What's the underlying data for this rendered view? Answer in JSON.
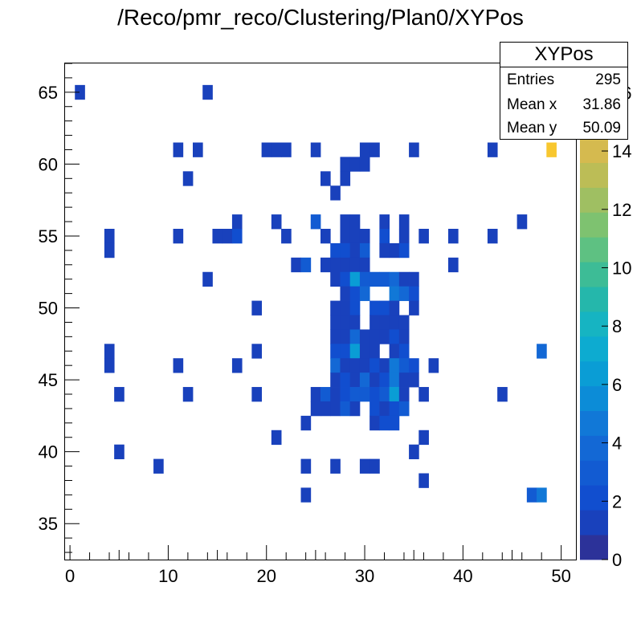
{
  "chart_data": {
    "type": "heatmap",
    "title": "/Reco/pmr_reco/Clustering/Plan0/XYPos",
    "xlabel": "",
    "ylabel": "",
    "xlim": [
      -0.5,
      51.5
    ],
    "ylim": [
      32.5,
      67
    ],
    "bin_width": 1,
    "x_ticks": [
      0,
      10,
      20,
      30,
      40,
      50
    ],
    "y_ticks": [
      35,
      40,
      45,
      50,
      55,
      60,
      65
    ],
    "colorbar": {
      "min": 0,
      "max": 17,
      "ticks": [
        0,
        2,
        4,
        6,
        8,
        10,
        12,
        14,
        16
      ],
      "tick_labels": [
        "0",
        "2",
        "4",
        "6",
        "8",
        "10",
        "12",
        "14",
        "16"
      ]
    },
    "stats": {
      "name": "XYPos",
      "entries_label": "Entries",
      "entries": "295",
      "meanx_label": "Mean x",
      "meanx": "31.86",
      "meany_label": "Mean y",
      "meany": "50.09"
    },
    "bins": [
      [
        1,
        65,
        1
      ],
      [
        14,
        65,
        1
      ],
      [
        11,
        61,
        1
      ],
      [
        13,
        61,
        1
      ],
      [
        20,
        61,
        1
      ],
      [
        21,
        61,
        1
      ],
      [
        22,
        61,
        1
      ],
      [
        25,
        61,
        1
      ],
      [
        30,
        61,
        1
      ],
      [
        31,
        61,
        1
      ],
      [
        35,
        61,
        1
      ],
      [
        43,
        61,
        1
      ],
      [
        49,
        61,
        16
      ],
      [
        28,
        60,
        1
      ],
      [
        29,
        60,
        1
      ],
      [
        30,
        60,
        1
      ],
      [
        12,
        59,
        1
      ],
      [
        26,
        59,
        1
      ],
      [
        28,
        59,
        1
      ],
      [
        27,
        58,
        1
      ],
      [
        17,
        56,
        1
      ],
      [
        21,
        56,
        1
      ],
      [
        25,
        56,
        3
      ],
      [
        28,
        56,
        1
      ],
      [
        29,
        56,
        1
      ],
      [
        32,
        56,
        1
      ],
      [
        34,
        56,
        1
      ],
      [
        46,
        56,
        1
      ],
      [
        4,
        55,
        1
      ],
      [
        11,
        55,
        1
      ],
      [
        15,
        55,
        1
      ],
      [
        16,
        55,
        1
      ],
      [
        17,
        55,
        2
      ],
      [
        22,
        55,
        1
      ],
      [
        26,
        55,
        1
      ],
      [
        28,
        55,
        1
      ],
      [
        29,
        55,
        1
      ],
      [
        30,
        55,
        1
      ],
      [
        32,
        55,
        2
      ],
      [
        34,
        55,
        1
      ],
      [
        36,
        55,
        1
      ],
      [
        39,
        55,
        1
      ],
      [
        43,
        55,
        1
      ],
      [
        4,
        54,
        1
      ],
      [
        27,
        54,
        2
      ],
      [
        28,
        54,
        2
      ],
      [
        29,
        54,
        1
      ],
      [
        30,
        54,
        3
      ],
      [
        32,
        54,
        1
      ],
      [
        33,
        54,
        1
      ],
      [
        34,
        54,
        2
      ],
      [
        23,
        53,
        1
      ],
      [
        24,
        53,
        3
      ],
      [
        26,
        53,
        1
      ],
      [
        27,
        53,
        1
      ],
      [
        28,
        53,
        1
      ],
      [
        29,
        53,
        1
      ],
      [
        30,
        53,
        1
      ],
      [
        39,
        53,
        1
      ],
      [
        14,
        52,
        1
      ],
      [
        27,
        52,
        1
      ],
      [
        28,
        52,
        2
      ],
      [
        29,
        52,
        6
      ],
      [
        30,
        52,
        3
      ],
      [
        31,
        52,
        3
      ],
      [
        32,
        52,
        3
      ],
      [
        33,
        52,
        4
      ],
      [
        34,
        52,
        1
      ],
      [
        35,
        52,
        1
      ],
      [
        28,
        51,
        1
      ],
      [
        29,
        51,
        2
      ],
      [
        30,
        51,
        4
      ],
      [
        33,
        51,
        5
      ],
      [
        34,
        51,
        4
      ],
      [
        35,
        51,
        2
      ],
      [
        19,
        50,
        1
      ],
      [
        27,
        50,
        1
      ],
      [
        28,
        50,
        1
      ],
      [
        29,
        50,
        2
      ],
      [
        31,
        50,
        2
      ],
      [
        32,
        50,
        2
      ],
      [
        33,
        50,
        1
      ],
      [
        35,
        50,
        1
      ],
      [
        27,
        49,
        1
      ],
      [
        28,
        49,
        1
      ],
      [
        29,
        49,
        1
      ],
      [
        31,
        49,
        1
      ],
      [
        32,
        49,
        1
      ],
      [
        33,
        49,
        1
      ],
      [
        34,
        49,
        1
      ],
      [
        27,
        48,
        1
      ],
      [
        28,
        48,
        1
      ],
      [
        29,
        48,
        4
      ],
      [
        30,
        48,
        1
      ],
      [
        31,
        48,
        1
      ],
      [
        32,
        48,
        1
      ],
      [
        33,
        48,
        2
      ],
      [
        34,
        48,
        1
      ],
      [
        4,
        47,
        1
      ],
      [
        19,
        47,
        1
      ],
      [
        27,
        47,
        2
      ],
      [
        28,
        47,
        2
      ],
      [
        29,
        47,
        6
      ],
      [
        30,
        47,
        1
      ],
      [
        31,
        47,
        1
      ],
      [
        33,
        47,
        1
      ],
      [
        34,
        47,
        2
      ],
      [
        48,
        47,
        4
      ],
      [
        4,
        46,
        1
      ],
      [
        11,
        46,
        1
      ],
      [
        17,
        46,
        1
      ],
      [
        27,
        46,
        4
      ],
      [
        28,
        46,
        1
      ],
      [
        29,
        46,
        1
      ],
      [
        30,
        46,
        1
      ],
      [
        31,
        46,
        2
      ],
      [
        32,
        46,
        1
      ],
      [
        33,
        46,
        5
      ],
      [
        34,
        46,
        3
      ],
      [
        35,
        46,
        2
      ],
      [
        37,
        46,
        1
      ],
      [
        27,
        45,
        1
      ],
      [
        28,
        45,
        2
      ],
      [
        29,
        45,
        1
      ],
      [
        30,
        45,
        4
      ],
      [
        31,
        45,
        1
      ],
      [
        32,
        45,
        2
      ],
      [
        33,
        45,
        5
      ],
      [
        34,
        45,
        1
      ],
      [
        35,
        45,
        1
      ],
      [
        5,
        44,
        1
      ],
      [
        12,
        44,
        1
      ],
      [
        19,
        44,
        1
      ],
      [
        25,
        44,
        1
      ],
      [
        26,
        44,
        3
      ],
      [
        27,
        44,
        1
      ],
      [
        28,
        44,
        2
      ],
      [
        29,
        44,
        3
      ],
      [
        30,
        44,
        3
      ],
      [
        31,
        44,
        2
      ],
      [
        32,
        44,
        3
      ],
      [
        33,
        44,
        6
      ],
      [
        34,
        44,
        1
      ],
      [
        36,
        44,
        1
      ],
      [
        44,
        44,
        1
      ],
      [
        25,
        43,
        1
      ],
      [
        26,
        43,
        1
      ],
      [
        27,
        43,
        1
      ],
      [
        28,
        43,
        3
      ],
      [
        29,
        43,
        1
      ],
      [
        31,
        43,
        2
      ],
      [
        32,
        43,
        1
      ],
      [
        33,
        43,
        2
      ],
      [
        34,
        43,
        3
      ],
      [
        24,
        42,
        1
      ],
      [
        31,
        42,
        1
      ],
      [
        32,
        42,
        2
      ],
      [
        33,
        42,
        2
      ],
      [
        21,
        41,
        1
      ],
      [
        36,
        41,
        1
      ],
      [
        5,
        40,
        1
      ],
      [
        35,
        40,
        1
      ],
      [
        9,
        39,
        1
      ],
      [
        24,
        39,
        1
      ],
      [
        27,
        39,
        1
      ],
      [
        30,
        39,
        1
      ],
      [
        31,
        39,
        1
      ],
      [
        36,
        38,
        1
      ],
      [
        24,
        37,
        1
      ],
      [
        47,
        37,
        3
      ],
      [
        48,
        37,
        5
      ]
    ]
  }
}
